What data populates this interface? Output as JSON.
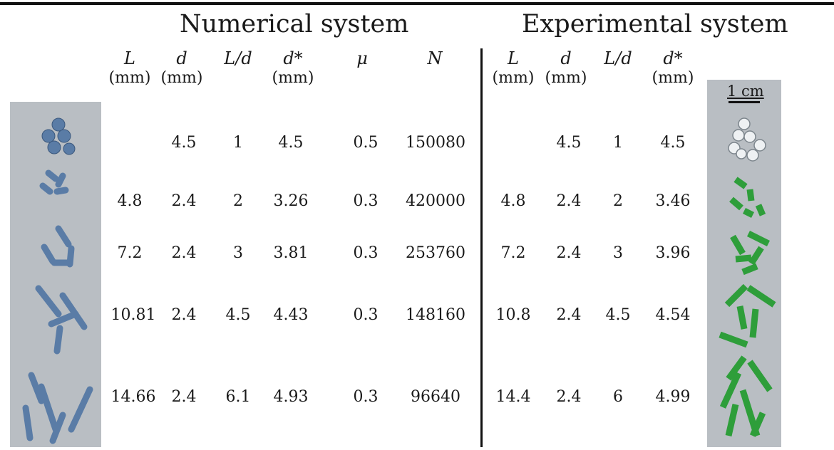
{
  "numerical": {
    "title": "Numerical system",
    "headers": [
      {
        "sym": "L",
        "unit": "(mm)"
      },
      {
        "sym": "d",
        "unit": "(mm)"
      },
      {
        "sym": "L/d",
        "unit": ""
      },
      {
        "sym": "d*",
        "unit": "(mm)"
      },
      {
        "sym": "μ",
        "unit": ""
      },
      {
        "sym": "N",
        "unit": ""
      }
    ],
    "rows": [
      [
        "",
        "4.5",
        "1",
        "4.5",
        "0.5",
        "150080"
      ],
      [
        "4.8",
        "2.4",
        "2",
        "3.26",
        "0.3",
        "420000"
      ],
      [
        "7.2",
        "2.4",
        "3",
        "3.81",
        "0.3",
        "253760"
      ],
      [
        "10.81",
        "2.4",
        "4.5",
        "4.43",
        "0.3",
        "148160"
      ],
      [
        "14.66",
        "2.4",
        "6.1",
        "4.93",
        "0.3",
        "96640"
      ]
    ]
  },
  "experimental": {
    "title": "Experimental system",
    "headers": [
      {
        "sym": "L",
        "unit": "(mm)"
      },
      {
        "sym": "d",
        "unit": "(mm)"
      },
      {
        "sym": "L/d",
        "unit": ""
      },
      {
        "sym": "d*",
        "unit": "(mm)"
      }
    ],
    "rows": [
      [
        "",
        "4.5",
        "1",
        "4.5"
      ],
      [
        "4.8",
        "2.4",
        "2",
        "3.46"
      ],
      [
        "7.2",
        "2.4",
        "3",
        "3.96"
      ],
      [
        "10.8",
        "2.4",
        "4.5",
        "4.54"
      ],
      [
        "14.4",
        "2.4",
        "6",
        "4.99"
      ]
    ]
  },
  "scale_bar": {
    "label": "1 cm"
  },
  "colors": {
    "panel_bg": "#b9bec3",
    "numerical_particle": "#5a7ca6",
    "experimental_particle": "#2e9e3a",
    "sphere": "#e8ecef"
  }
}
